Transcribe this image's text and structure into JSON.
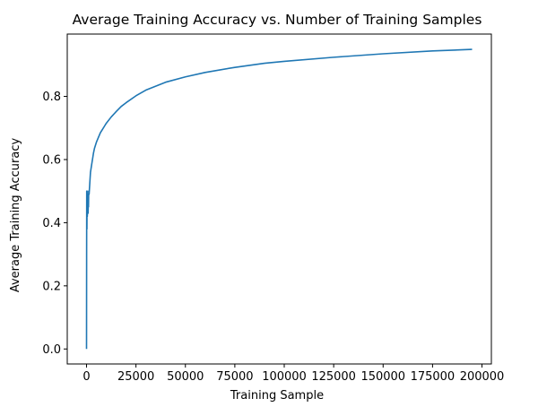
{
  "chart_data": {
    "type": "line",
    "title": "Average Training Accuracy vs. Number of Training Samples",
    "xlabel": "Training Sample",
    "ylabel": "Average Training Accuracy",
    "xlim": [
      -9750,
      204750
    ],
    "ylim": [
      -0.0475,
      0.9975
    ],
    "x_ticks": [
      0,
      25000,
      50000,
      75000,
      100000,
      125000,
      150000,
      175000,
      200000
    ],
    "x_tick_labels": [
      "0",
      "25000",
      "50000",
      "75000",
      "100000",
      "125000",
      "150000",
      "175000",
      "200000"
    ],
    "y_ticks": [
      0.0,
      0.2,
      0.4,
      0.6,
      0.8
    ],
    "y_tick_labels": [
      "0.0",
      "0.2",
      "0.4",
      "0.6",
      "0.8"
    ],
    "grid": false,
    "legend": "none",
    "series": [
      {
        "color": "#1f77b4",
        "x": [
          0,
          50,
          100,
          200,
          300,
          400,
          500,
          600,
          700,
          800,
          900,
          1000,
          1100,
          1300,
          1500,
          1800,
          2000,
          2500,
          3000,
          3500,
          4000,
          5000,
          6000,
          7000,
          8000,
          9000,
          10000,
          12500,
          15000,
          17500,
          20000,
          25000,
          30000,
          40000,
          50000,
          60000,
          75000,
          90000,
          100000,
          125000,
          150000,
          175000,
          195000
        ],
        "y": [
          0.0,
          0.29,
          0.5,
          0.38,
          0.5,
          0.42,
          0.49,
          0.44,
          0.48,
          0.43,
          0.47,
          0.45,
          0.5,
          0.49,
          0.51,
          0.54,
          0.56,
          0.58,
          0.6,
          0.62,
          0.635,
          0.655,
          0.67,
          0.685,
          0.695,
          0.705,
          0.715,
          0.735,
          0.752,
          0.768,
          0.78,
          0.802,
          0.82,
          0.845,
          0.862,
          0.876,
          0.892,
          0.905,
          0.911,
          0.924,
          0.935,
          0.944,
          0.949
        ]
      }
    ]
  }
}
